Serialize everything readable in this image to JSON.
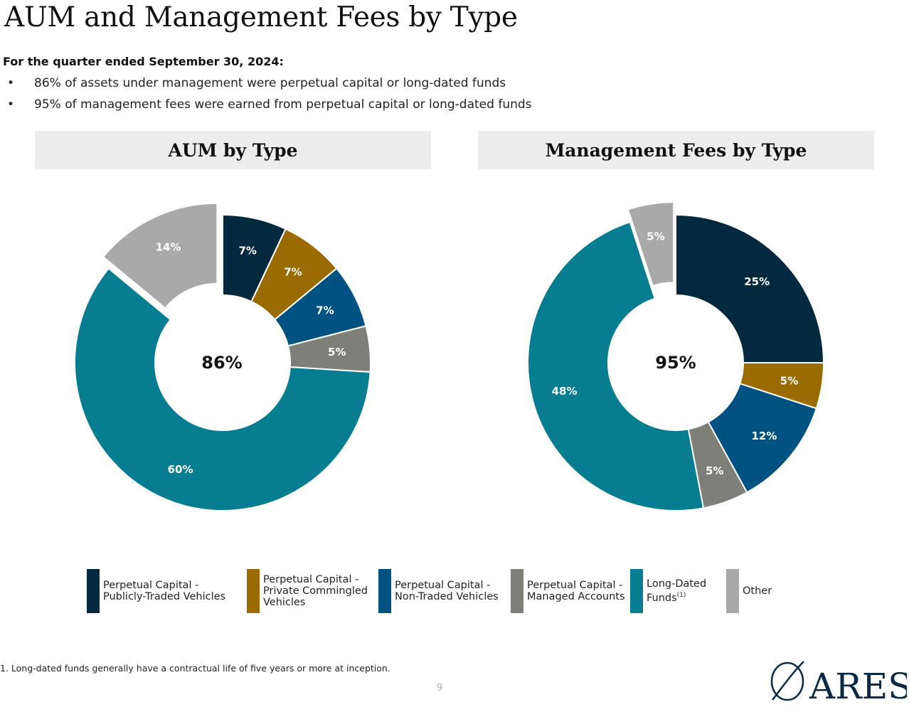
{
  "page": {
    "title": "AUM and Management Fees by Type",
    "subtitle": "For the quarter ended September 30, 2024:",
    "bullets": [
      "86% of assets under management were perpetual capital or long-dated funds",
      "95% of management fees were earned from perpetual capital or long-dated funds"
    ],
    "footnote": "1.  Long-dated funds generally have a contractual life of five years or more at inception.",
    "page_number": "9",
    "logo_text": "ARES"
  },
  "chart_data": [
    {
      "type": "pie",
      "title": "AUM by Type",
      "center_label": "86%",
      "categories": [
        "Perpetual Capital - Publicly-Traded Vehicles",
        "Perpetual Capital - Private Commingled Vehicles",
        "Perpetual Capital - Non-Traded Vehicles",
        "Perpetual Capital - Managed Accounts",
        "Long-Dated Funds",
        "Other"
      ],
      "values": [
        7,
        7,
        7,
        5,
        60,
        14
      ],
      "data_labels": [
        "7%",
        "7%",
        "7%",
        "5%",
        "60%",
        "14%"
      ],
      "colors": [
        "#03293f",
        "#9a6b00",
        "#005283",
        "#7f7f7a",
        "#077d91",
        "#a9a9a9"
      ],
      "exploded": [
        false,
        false,
        false,
        false,
        false,
        true
      ]
    },
    {
      "type": "pie",
      "title": "Management Fees by Type",
      "center_label": "95%",
      "categories": [
        "Perpetual Capital - Publicly-Traded Vehicles",
        "Perpetual Capital - Private Commingled Vehicles",
        "Perpetual Capital - Non-Traded Vehicles",
        "Perpetual Capital - Managed Accounts",
        "Long-Dated Funds",
        "Other"
      ],
      "values": [
        25,
        5,
        12,
        5,
        48,
        5
      ],
      "data_labels": [
        "25%",
        "5%",
        "12%",
        "5%",
        "48%",
        "5%"
      ],
      "colors": [
        "#03293f",
        "#9a6b00",
        "#005283",
        "#7f7f7a",
        "#077d91",
        "#a9a9a9"
      ],
      "exploded": [
        false,
        false,
        false,
        false,
        false,
        true
      ]
    }
  ],
  "legend": {
    "items": [
      {
        "label": "Perpetual Capital -\nPublicly-Traded Vehicles",
        "color": "#03293f"
      },
      {
        "label": "Perpetual Capital -\nPrivate Commingled\nVehicles",
        "color": "#9a6b00"
      },
      {
        "label": "Perpetual Capital -\nNon-Traded Vehicles",
        "color": "#005283"
      },
      {
        "label": "Perpetual Capital -\nManaged Accounts",
        "color": "#7f7f7a"
      },
      {
        "label": "Long-Dated\nFunds",
        "superscript": "(1)",
        "color": "#077d91"
      },
      {
        "label": "Other",
        "color": "#a9a9a9"
      }
    ]
  }
}
